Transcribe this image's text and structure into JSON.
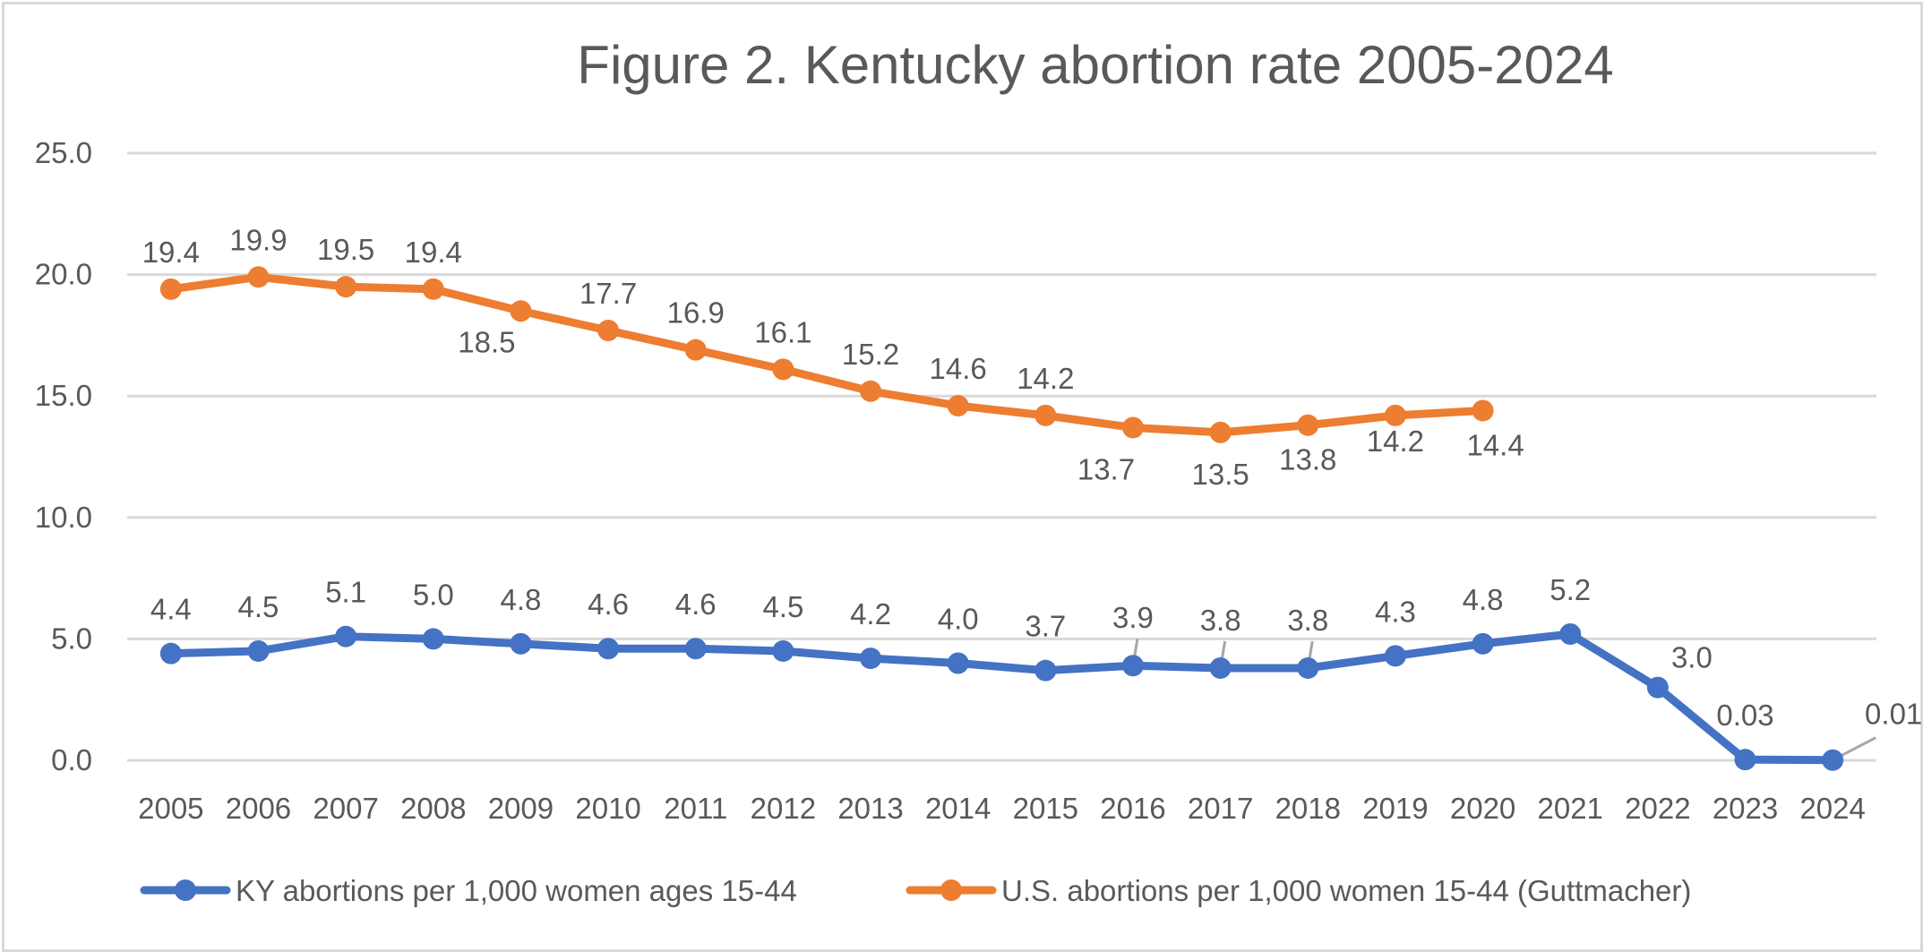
{
  "chart_data": {
    "type": "line",
    "title": "Figure 2. Kentucky abortion rate 2005-2024",
    "xlabel": "",
    "ylabel": "",
    "ylim": [
      0,
      25
    ],
    "yticks": [
      "0.0",
      "5.0",
      "10.0",
      "15.0",
      "20.0",
      "25.0"
    ],
    "grid": true,
    "legend_position": "bottom",
    "categories": [
      "2005",
      "2006",
      "2007",
      "2008",
      "2009",
      "2010",
      "2011",
      "2012",
      "2013",
      "2014",
      "2015",
      "2016",
      "2017",
      "2018",
      "2019",
      "2020",
      "2021",
      "2022",
      "2023",
      "2024"
    ],
    "series": [
      {
        "name": "KY abortions per 1,000 women ages 15-44",
        "color": "#4472C4",
        "values": [
          4.4,
          4.5,
          5.1,
          5.0,
          4.8,
          4.6,
          4.6,
          4.5,
          4.2,
          4.0,
          3.7,
          3.9,
          3.8,
          3.8,
          4.3,
          4.8,
          5.2,
          3.0,
          0.03,
          0.01
        ],
        "labels": [
          "4.4",
          "4.5",
          "5.1",
          "5.0",
          "4.8",
          "4.6",
          "4.6",
          "4.5",
          "4.2",
          "4.0",
          "3.7",
          "3.9",
          "3.8",
          "3.8",
          "4.3",
          "4.8",
          "5.2",
          "3.0",
          "0.03",
          "0.01"
        ]
      },
      {
        "name": "U.S. abortions per 1,000 women 15-44 (Guttmacher)",
        "color": "#ED7D31",
        "values": [
          19.4,
          19.9,
          19.5,
          19.4,
          18.5,
          17.7,
          16.9,
          16.1,
          15.2,
          14.6,
          14.2,
          13.7,
          13.5,
          13.8,
          14.2,
          14.4,
          null,
          null,
          null,
          null
        ],
        "labels": [
          "19.4",
          "19.9",
          "19.5",
          "19.4",
          "18.5",
          "17.7",
          "16.9",
          "16.1",
          "15.2",
          "14.6",
          "14.2",
          "13.7",
          "13.5",
          "13.8",
          "14.2",
          "14.4",
          null,
          null,
          null,
          null
        ]
      }
    ]
  }
}
